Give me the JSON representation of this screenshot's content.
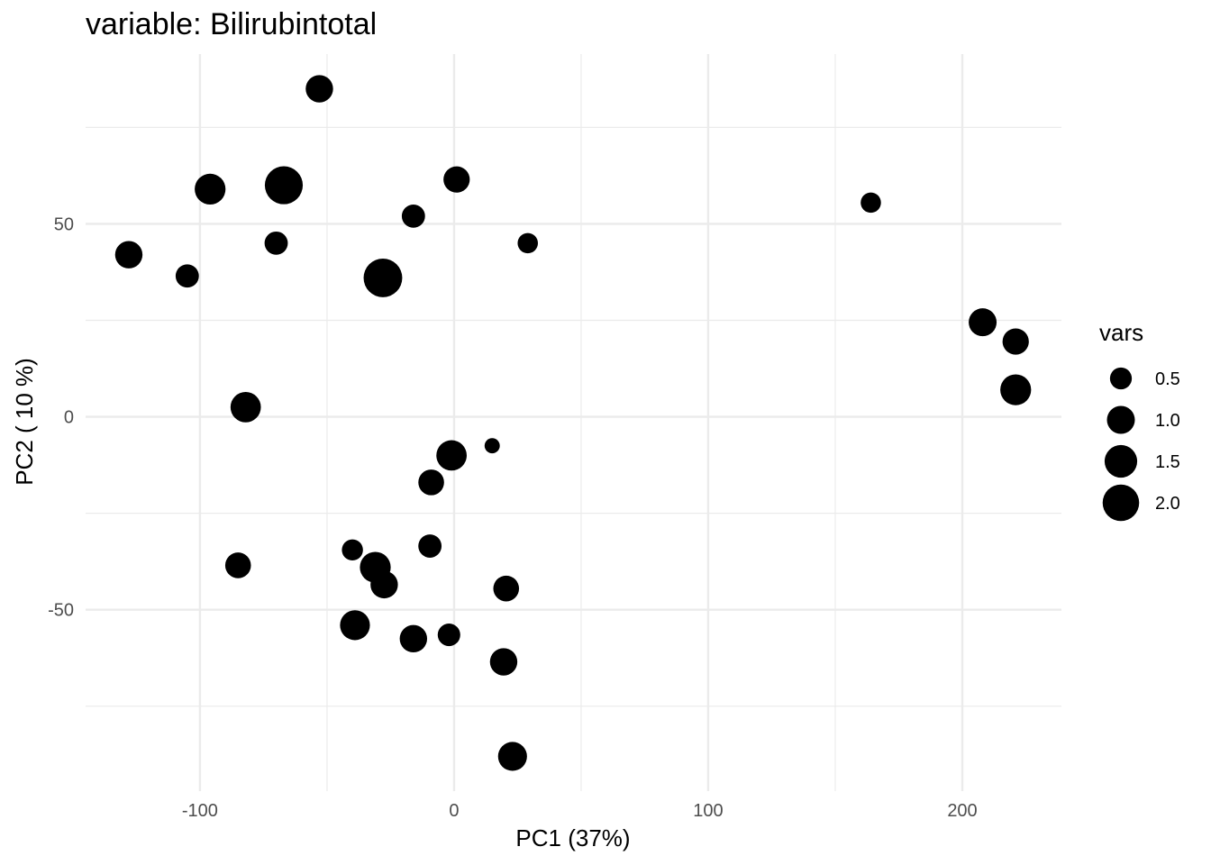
{
  "chart_data": {
    "type": "scatter",
    "title": "variable: Bilirubintotal",
    "xlabel": "PC1 (37%)",
    "ylabel": "PC2 ( 10 %)",
    "xlim": [
      -145,
      239
    ],
    "ylim": [
      -97,
      94
    ],
    "x_ticks": [
      -100,
      0,
      100,
      200
    ],
    "x_tick_labels": [
      "-100",
      "0",
      "100",
      "200"
    ],
    "y_ticks": [
      -50,
      0,
      50
    ],
    "y_tick_labels": [
      "-50",
      "0",
      "50"
    ],
    "grid": true,
    "point_color": "#000000",
    "size_legend": {
      "title": "vars",
      "position": "right",
      "entries": [
        {
          "label": "0.5",
          "value": 0.5
        },
        {
          "label": "1.0",
          "value": 1.0
        },
        {
          "label": "1.5",
          "value": 1.5
        },
        {
          "label": "2.0",
          "value": 2.0
        }
      ]
    },
    "points": [
      {
        "x": -53,
        "y": 85,
        "vars": 0.95
      },
      {
        "x": -67,
        "y": 60,
        "vars": 2.2
      },
      {
        "x": -96,
        "y": 59,
        "vars": 1.3
      },
      {
        "x": 1,
        "y": 61.5,
        "vars": 0.85
      },
      {
        "x": -16,
        "y": 52,
        "vars": 0.6
      },
      {
        "x": -70,
        "y": 45,
        "vars": 0.6
      },
      {
        "x": 29,
        "y": 45,
        "vars": 0.4
      },
      {
        "x": -128,
        "y": 42,
        "vars": 0.95
      },
      {
        "x": -105,
        "y": 36.5,
        "vars": 0.6
      },
      {
        "x": -28,
        "y": 36,
        "vars": 2.3
      },
      {
        "x": 164,
        "y": 55.5,
        "vars": 0.4
      },
      {
        "x": 208,
        "y": 24.5,
        "vars": 1.0
      },
      {
        "x": 221,
        "y": 19.5,
        "vars": 0.85
      },
      {
        "x": 221,
        "y": 7,
        "vars": 1.3
      },
      {
        "x": -82,
        "y": 2.5,
        "vars": 1.25
      },
      {
        "x": -1,
        "y": -10,
        "vars": 1.25
      },
      {
        "x": 15,
        "y": -7.5,
        "vars": 0.15
      },
      {
        "x": -9,
        "y": -17,
        "vars": 0.8
      },
      {
        "x": -85,
        "y": -38.5,
        "vars": 0.8
      },
      {
        "x": -40,
        "y": -34.5,
        "vars": 0.45
      },
      {
        "x": -9.5,
        "y": -33.5,
        "vars": 0.6
      },
      {
        "x": -31,
        "y": -39,
        "vars": 1.3
      },
      {
        "x": -27.5,
        "y": -43.5,
        "vars": 0.95
      },
      {
        "x": 20.5,
        "y": -44.5,
        "vars": 0.8
      },
      {
        "x": -39,
        "y": -54,
        "vars": 1.2
      },
      {
        "x": -16,
        "y": -57.5,
        "vars": 0.95
      },
      {
        "x": -2,
        "y": -56.5,
        "vars": 0.55
      },
      {
        "x": 19.5,
        "y": -63.5,
        "vars": 0.95
      },
      {
        "x": 23,
        "y": -88,
        "vars": 1.1
      }
    ]
  }
}
